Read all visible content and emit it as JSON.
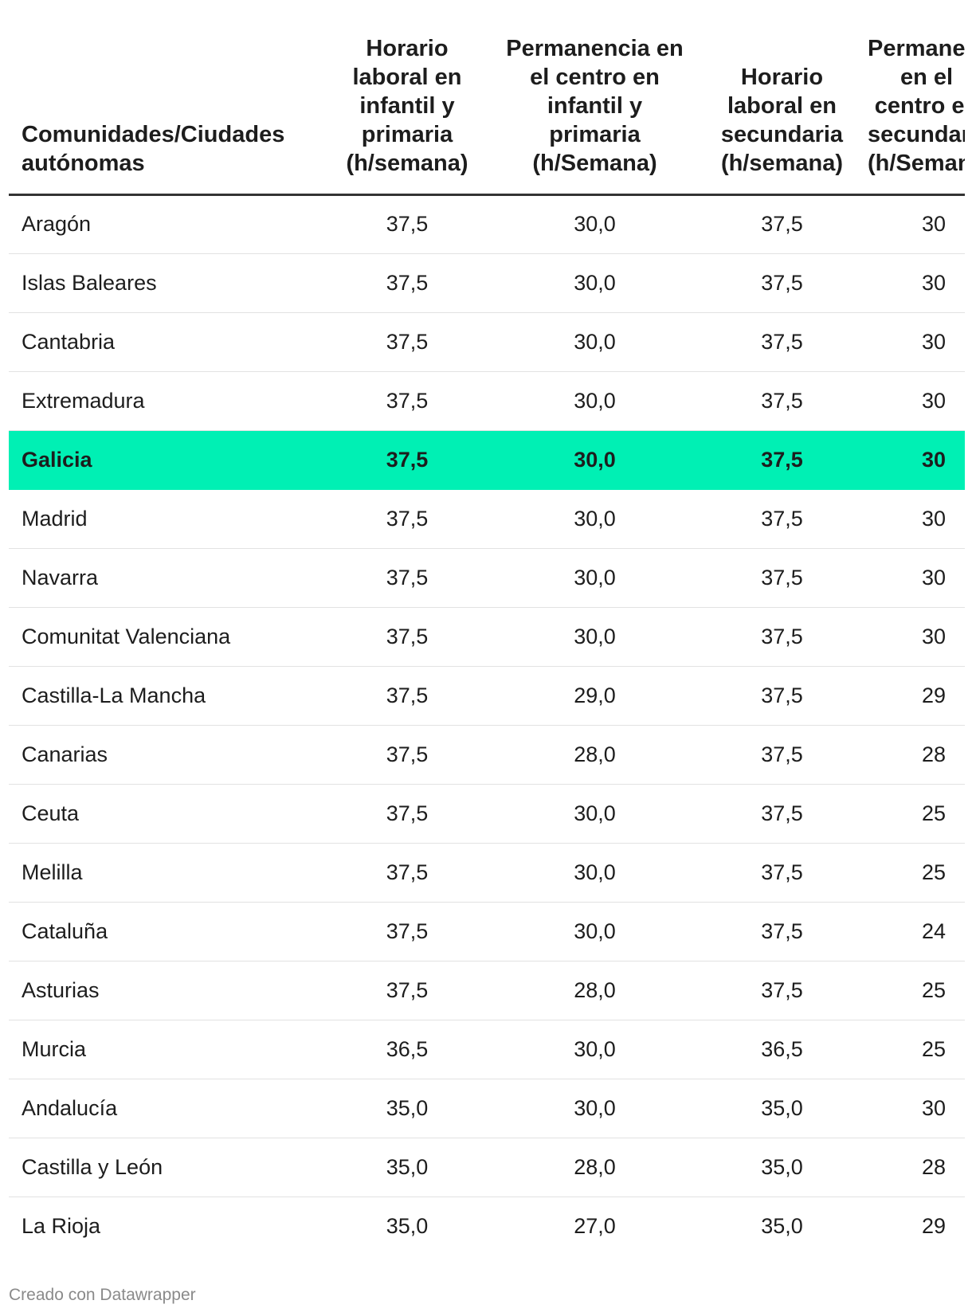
{
  "chart_data": {
    "type": "table",
    "columns": [
      "Comunidades/Ciudades autónomas",
      "Horario laboral en infantil y primaria (h/semana)",
      "Permanencia en el centro en infantil y primaria (h/Semana)",
      "Horario laboral en secundaria (h/semana)",
      "Permanencia en el centro en secundaria (h/Semana)"
    ],
    "highlight_color": "#00f0b4",
    "highlighted_row": "Galicia",
    "rows": [
      {
        "region": "Aragón",
        "values": [
          "37,5",
          "30,0",
          "37,5",
          "30"
        ]
      },
      {
        "region": "Islas Baleares",
        "values": [
          "37,5",
          "30,0",
          "37,5",
          "30"
        ]
      },
      {
        "region": "Cantabria",
        "values": [
          "37,5",
          "30,0",
          "37,5",
          "30"
        ]
      },
      {
        "region": "Extremadura",
        "values": [
          "37,5",
          "30,0",
          "37,5",
          "30"
        ]
      },
      {
        "region": "Galicia",
        "values": [
          "37,5",
          "30,0",
          "37,5",
          "30"
        ]
      },
      {
        "region": "Madrid",
        "values": [
          "37,5",
          "30,0",
          "37,5",
          "30"
        ]
      },
      {
        "region": "Navarra",
        "values": [
          "37,5",
          "30,0",
          "37,5",
          "30"
        ]
      },
      {
        "region": "Comunitat Valenciana",
        "values": [
          "37,5",
          "30,0",
          "37,5",
          "30"
        ]
      },
      {
        "region": "Castilla-La Mancha",
        "values": [
          "37,5",
          "29,0",
          "37,5",
          "29"
        ]
      },
      {
        "region": "Canarias",
        "values": [
          "37,5",
          "28,0",
          "37,5",
          "28"
        ]
      },
      {
        "region": "Ceuta",
        "values": [
          "37,5",
          "30,0",
          "37,5",
          "25"
        ]
      },
      {
        "region": "Melilla",
        "values": [
          "37,5",
          "30,0",
          "37,5",
          "25"
        ]
      },
      {
        "region": "Cataluña",
        "values": [
          "37,5",
          "30,0",
          "37,5",
          "24"
        ]
      },
      {
        "region": "Asturias",
        "values": [
          "37,5",
          "28,0",
          "37,5",
          "25"
        ]
      },
      {
        "region": "Murcia",
        "values": [
          "36,5",
          "30,0",
          "36,5",
          "25"
        ]
      },
      {
        "region": "Andalucía",
        "values": [
          "35,0",
          "30,0",
          "35,0",
          "30"
        ]
      },
      {
        "region": "Castilla y León",
        "values": [
          "35,0",
          "28,0",
          "35,0",
          "28"
        ]
      },
      {
        "region": "La Rioja",
        "values": [
          "35,0",
          "27,0",
          "35,0",
          "29"
        ]
      }
    ]
  },
  "footer": {
    "credit": "Creado con Datawrapper"
  }
}
